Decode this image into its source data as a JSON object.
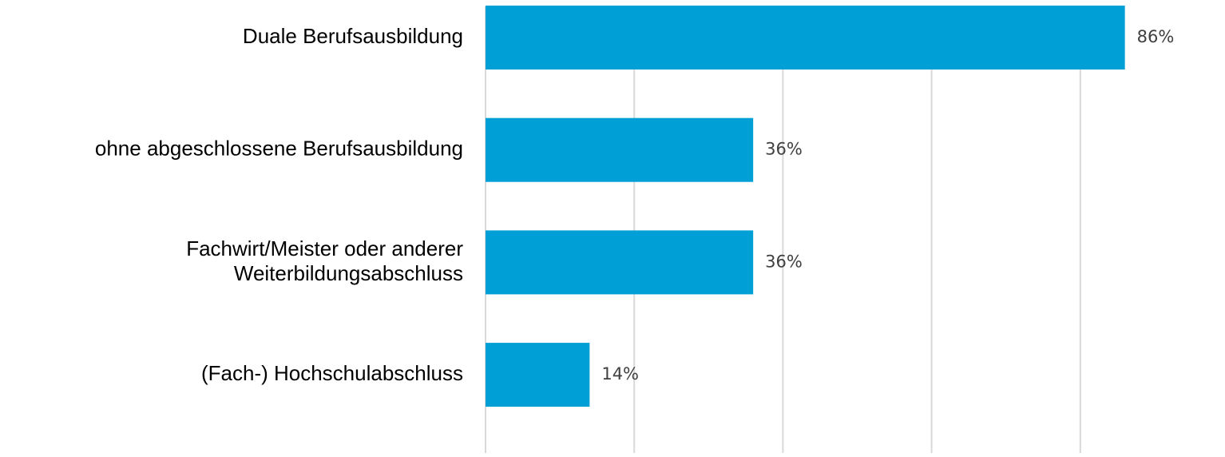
{
  "chart_data": {
    "type": "bar",
    "orientation": "horizontal",
    "categories": [
      "Duale Berufsausbildung",
      "ohne abgeschlossene Berufsausbildung",
      "Fachwirt/Meister oder anderer\nWeiterbildungsabschluss",
      "(Fach-) Hochschulabschluss"
    ],
    "values": [
      86,
      36,
      36,
      14
    ],
    "value_labels": [
      "86%",
      "36%",
      "36%",
      "14%"
    ],
    "color": "#009fd6",
    "xlim": [
      0,
      100
    ],
    "xticks": [
      0,
      20,
      40,
      60,
      80
    ],
    "grid": true
  }
}
